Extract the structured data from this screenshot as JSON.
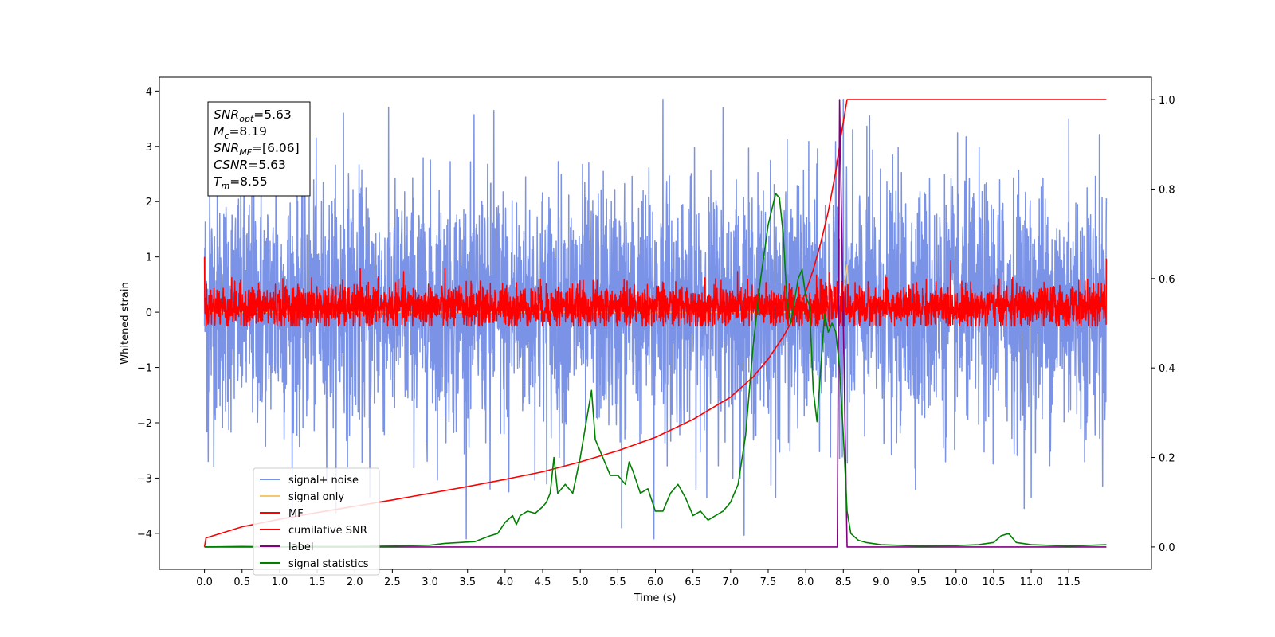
{
  "chart_data": {
    "type": "line",
    "title": "",
    "xlabel": "Time (s)",
    "ylabel": "Whitened strain",
    "ylabel_right": "",
    "xlim": [
      -0.6,
      12.6
    ],
    "ylim": [
      -4.65,
      4.25
    ],
    "ylim_right": [
      -0.05,
      1.05
    ],
    "grid": false,
    "legend_location": "lower left",
    "x_ticks": [
      0.0,
      0.5,
      1.0,
      1.5,
      2.0,
      2.5,
      3.0,
      3.5,
      4.0,
      4.5,
      5.0,
      5.5,
      6.0,
      6.5,
      7.0,
      7.5,
      8.0,
      8.5,
      9.0,
      9.5,
      10.0,
      10.5,
      11.0,
      11.5
    ],
    "x_tick_labels": [
      "0.0",
      "0.5",
      "1.0",
      "1.5",
      "2.0",
      "2.5",
      "3.0",
      "3.5",
      "4.0",
      "4.5",
      "5.0",
      "5.5",
      "6.0",
      "6.5",
      "7.0",
      "7.5",
      "8.0",
      "8.5",
      "9.0",
      "9.5",
      "10.0",
      "10.5",
      "11.0",
      "11.5"
    ],
    "y_ticks": [
      -4,
      -3,
      -2,
      -1,
      0,
      1,
      2,
      3,
      4
    ],
    "y_tick_labels": [
      "−4",
      "−3",
      "−2",
      "−1",
      "0",
      "1",
      "2",
      "3",
      "4"
    ],
    "y_right_ticks": [
      0.0,
      0.2,
      0.4,
      0.6,
      0.8,
      1.0
    ],
    "y_right_tick_labels": [
      "0.0",
      "0.2",
      "0.4",
      "0.6",
      "0.8",
      "1.0"
    ],
    "annotation_lines": [
      {
        "label": "SNR",
        "sub": "opt",
        "value": "=5.63"
      },
      {
        "label": "M",
        "sub": "c",
        "value": "=8.19"
      },
      {
        "label": "SNR",
        "sub": "MF",
        "value": "=[6.06]"
      },
      {
        "label": "CSNR",
        "sub": "",
        "value": "=5.63"
      },
      {
        "label": "T",
        "sub": "m",
        "value": "=8.55"
      }
    ],
    "series": [
      {
        "name": "signal+ noise",
        "color": "#7b93e6",
        "axis": "left",
        "style": "noise",
        "x_range": [
          0,
          12
        ],
        "envelope": {
          "typical_lower": -1.9,
          "typical_upper": 2.1,
          "max": 3.85,
          "min": -4.1
        },
        "spikes_upper": [
          [
            0.07,
            2.55
          ],
          [
            0.95,
            3.5
          ],
          [
            1.85,
            3.6
          ],
          [
            3.85,
            3.65
          ],
          [
            6.1,
            3.85
          ],
          [
            6.9,
            3.7
          ],
          [
            8.5,
            3.85
          ],
          [
            8.85,
            3.55
          ],
          [
            11.5,
            3.5
          ],
          [
            11.95,
            3.3
          ]
        ],
        "spikes_lower": [
          [
            0.05,
            -2.7
          ],
          [
            2.2,
            -3.35
          ],
          [
            3.8,
            -3.2
          ],
          [
            4.05,
            -3.25
          ],
          [
            5.55,
            -3.9
          ],
          [
            5.98,
            -4.1
          ],
          [
            7.6,
            -3.35
          ],
          [
            11.0,
            -3.35
          ],
          [
            11.95,
            -3.15
          ]
        ]
      },
      {
        "name": "signal only",
        "color": "#f5c86e",
        "axis": "left",
        "style": "chirp",
        "points": [
          [
            0,
            0
          ],
          [
            8.2,
            0
          ],
          [
            8.3,
            0.2
          ],
          [
            8.4,
            0.3
          ],
          [
            8.5,
            0.35
          ],
          [
            8.55,
            0.85
          ],
          [
            8.58,
            0
          ]
        ]
      },
      {
        "name": "MF",
        "color": "#ff0000",
        "axis": "left",
        "style": "noise",
        "x_range": [
          0,
          12
        ],
        "envelope": {
          "typical_lower": -0.25,
          "typical_upper": 0.45,
          "max": 1.0,
          "min": -0.25
        },
        "edge_values": {
          "start": 1.0,
          "end": 0.97
        }
      },
      {
        "name": "cumilative SNR",
        "color": "#ff0000",
        "axis": "right",
        "points": [
          [
            0.0,
            0.0
          ],
          [
            0.02,
            0.02
          ],
          [
            0.5,
            0.045
          ],
          [
            1.0,
            0.062
          ],
          [
            1.5,
            0.077
          ],
          [
            2.0,
            0.091
          ],
          [
            2.5,
            0.105
          ],
          [
            3.0,
            0.12
          ],
          [
            3.5,
            0.135
          ],
          [
            4.0,
            0.151
          ],
          [
            4.5,
            0.168
          ],
          [
            5.0,
            0.19
          ],
          [
            5.5,
            0.215
          ],
          [
            6.0,
            0.245
          ],
          [
            6.5,
            0.285
          ],
          [
            7.0,
            0.335
          ],
          [
            7.3,
            0.38
          ],
          [
            7.5,
            0.42
          ],
          [
            7.7,
            0.47
          ],
          [
            7.9,
            0.53
          ],
          [
            8.0,
            0.57
          ],
          [
            8.1,
            0.62
          ],
          [
            8.2,
            0.68
          ],
          [
            8.3,
            0.75
          ],
          [
            8.4,
            0.84
          ],
          [
            8.47,
            0.92
          ],
          [
            8.52,
            0.97
          ],
          [
            8.55,
            1.0
          ],
          [
            12.0,
            1.0
          ]
        ]
      },
      {
        "name": "label",
        "color": "#800080",
        "axis": "right",
        "points": [
          [
            0.0,
            0.0
          ],
          [
            8.42,
            0.0
          ],
          [
            8.45,
            1.0
          ],
          [
            8.55,
            0.0
          ],
          [
            12.0,
            0.0
          ]
        ]
      },
      {
        "name": "signal statistics",
        "color": "#008000",
        "axis": "right",
        "points": [
          [
            0.0,
            0.0
          ],
          [
            0.5,
            0.001
          ],
          [
            1.0,
            0.0
          ],
          [
            1.5,
            0.001
          ],
          [
            2.0,
            0.001
          ],
          [
            2.5,
            0.002
          ],
          [
            3.0,
            0.004
          ],
          [
            3.2,
            0.008
          ],
          [
            3.4,
            0.01
          ],
          [
            3.6,
            0.012
          ],
          [
            3.8,
            0.025
          ],
          [
            3.9,
            0.03
          ],
          [
            4.0,
            0.055
          ],
          [
            4.1,
            0.07
          ],
          [
            4.15,
            0.05
          ],
          [
            4.2,
            0.07
          ],
          [
            4.3,
            0.08
          ],
          [
            4.4,
            0.075
          ],
          [
            4.5,
            0.09
          ],
          [
            4.55,
            0.1
          ],
          [
            4.6,
            0.12
          ],
          [
            4.65,
            0.2
          ],
          [
            4.7,
            0.12
          ],
          [
            4.8,
            0.14
          ],
          [
            4.9,
            0.12
          ],
          [
            5.0,
            0.2
          ],
          [
            5.1,
            0.3
          ],
          [
            5.15,
            0.35
          ],
          [
            5.2,
            0.24
          ],
          [
            5.3,
            0.2
          ],
          [
            5.4,
            0.16
          ],
          [
            5.5,
            0.16
          ],
          [
            5.6,
            0.14
          ],
          [
            5.65,
            0.19
          ],
          [
            5.7,
            0.17
          ],
          [
            5.8,
            0.12
          ],
          [
            5.9,
            0.13
          ],
          [
            6.0,
            0.08
          ],
          [
            6.1,
            0.08
          ],
          [
            6.2,
            0.12
          ],
          [
            6.3,
            0.14
          ],
          [
            6.4,
            0.11
          ],
          [
            6.5,
            0.07
          ],
          [
            6.6,
            0.08
          ],
          [
            6.7,
            0.06
          ],
          [
            6.8,
            0.07
          ],
          [
            6.9,
            0.08
          ],
          [
            7.0,
            0.1
          ],
          [
            7.1,
            0.14
          ],
          [
            7.2,
            0.25
          ],
          [
            7.3,
            0.45
          ],
          [
            7.4,
            0.6
          ],
          [
            7.5,
            0.72
          ],
          [
            7.6,
            0.79
          ],
          [
            7.65,
            0.78
          ],
          [
            7.7,
            0.7
          ],
          [
            7.75,
            0.55
          ],
          [
            7.8,
            0.5
          ],
          [
            7.85,
            0.55
          ],
          [
            7.9,
            0.6
          ],
          [
            7.95,
            0.62
          ],
          [
            8.0,
            0.56
          ],
          [
            8.05,
            0.54
          ],
          [
            8.1,
            0.35
          ],
          [
            8.15,
            0.28
          ],
          [
            8.2,
            0.4
          ],
          [
            8.25,
            0.52
          ],
          [
            8.3,
            0.48
          ],
          [
            8.35,
            0.5
          ],
          [
            8.4,
            0.48
          ],
          [
            8.45,
            0.4
          ],
          [
            8.5,
            0.25
          ],
          [
            8.55,
            0.08
          ],
          [
            8.6,
            0.03
          ],
          [
            8.7,
            0.015
          ],
          [
            8.8,
            0.01
          ],
          [
            9.0,
            0.005
          ],
          [
            9.5,
            0.002
          ],
          [
            10.0,
            0.003
          ],
          [
            10.3,
            0.005
          ],
          [
            10.5,
            0.01
          ],
          [
            10.6,
            0.025
          ],
          [
            10.7,
            0.03
          ],
          [
            10.8,
            0.01
          ],
          [
            11.0,
            0.005
          ],
          [
            11.5,
            0.002
          ],
          [
            12.0,
            0.005
          ]
        ]
      }
    ]
  }
}
